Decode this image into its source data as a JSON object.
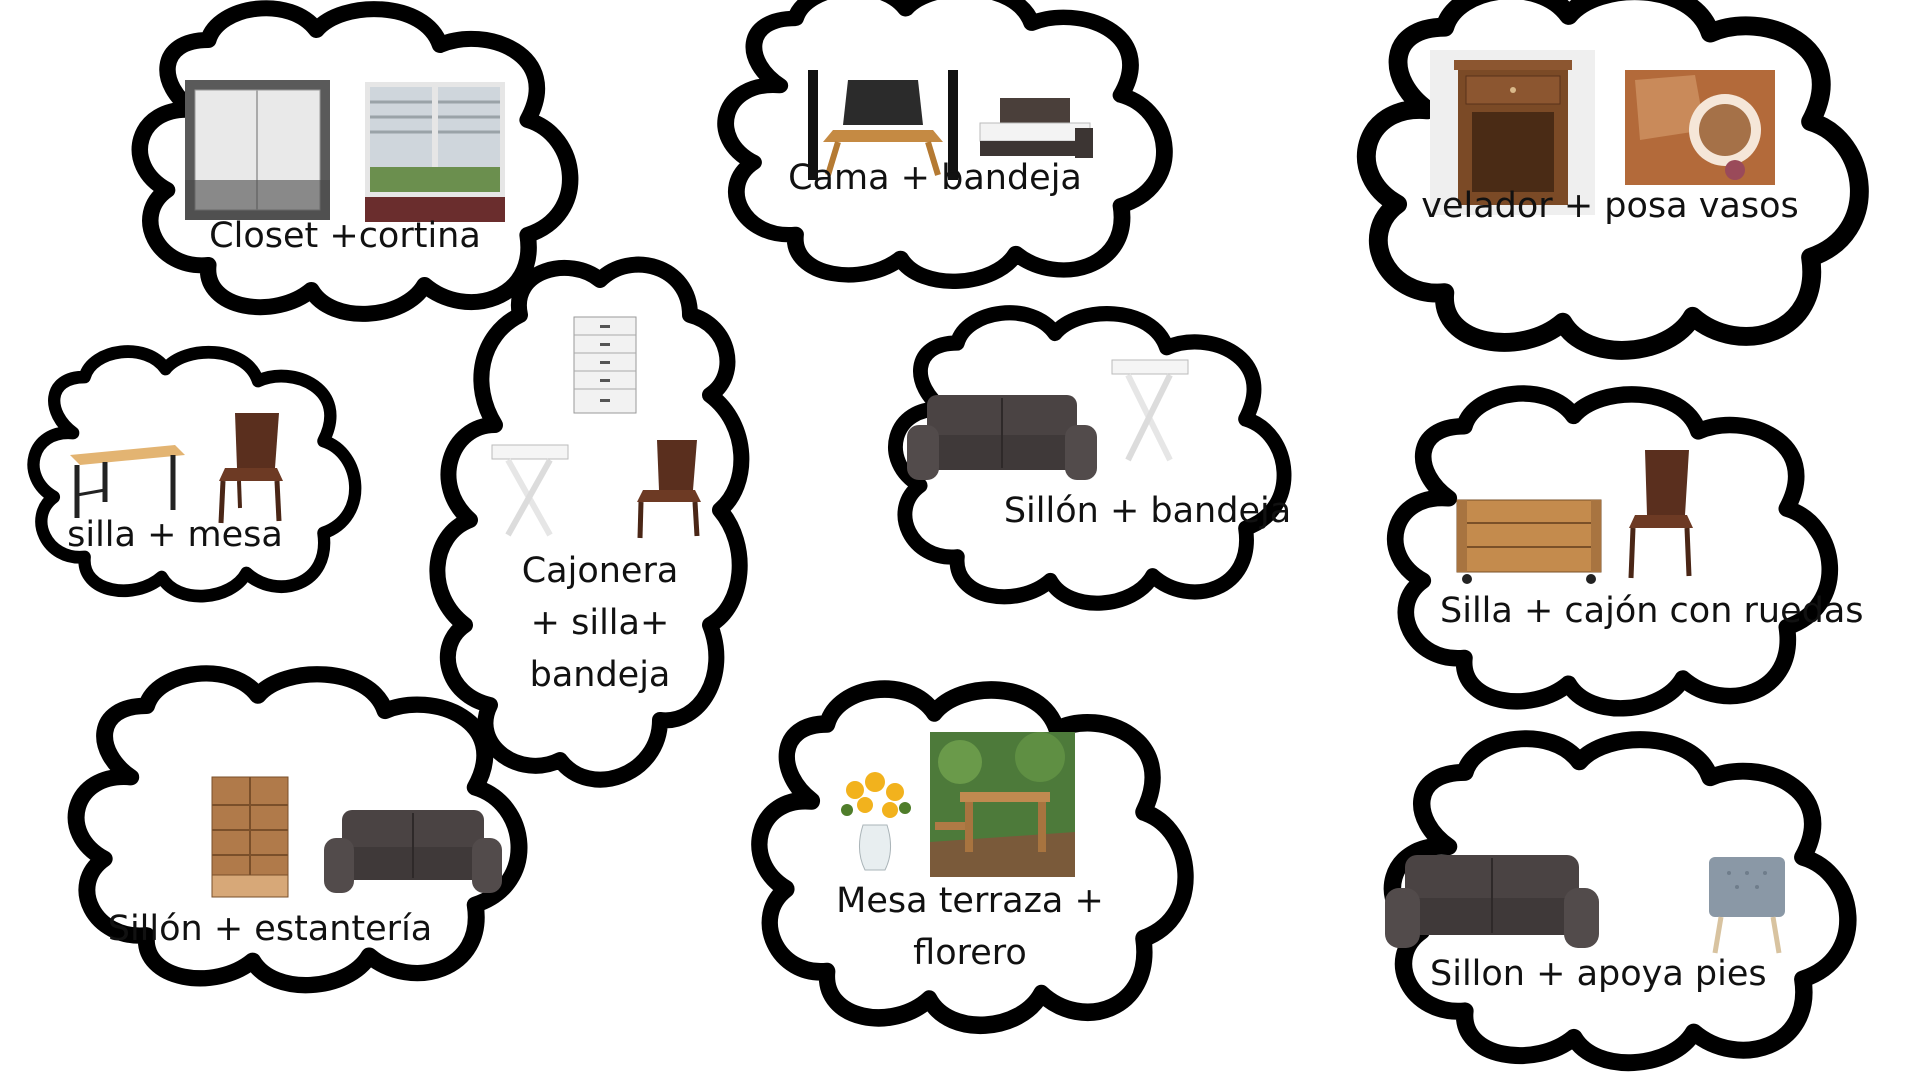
{
  "clouds": [
    {
      "label": "Closet +cortina",
      "items": [
        "closet-icon",
        "curtain-icon"
      ]
    },
    {
      "label": "Cama + bandeja",
      "items": [
        "laptop-tray-icon",
        "bed-icon"
      ]
    },
    {
      "label": "velador + posa vasos",
      "items": [
        "nightstand-icon",
        "coaster-icon"
      ]
    },
    {
      "label": "silla + mesa",
      "items": [
        "desk-icon",
        "chair-icon"
      ]
    },
    {
      "label_lines": [
        "Cajonera",
        "+ silla+",
        "bandeja"
      ],
      "items": [
        "drawer-cabinet-icon",
        "tray-table-icon",
        "chair-icon"
      ]
    },
    {
      "label": "Sillón + bandeja",
      "items": [
        "sofa-icon",
        "tray-table-icon"
      ]
    },
    {
      "label": "Silla + cajón con ruedas",
      "items": [
        "crate-on-wheels-icon",
        "chair-icon"
      ]
    },
    {
      "label": "Sillón + estantería",
      "items": [
        "bookshelf-icon",
        "sofa-icon"
      ]
    },
    {
      "label_lines": [
        "Mesa terraza +",
        "florero"
      ],
      "items": [
        "flower-vase-icon",
        "terrace-table-icon"
      ]
    },
    {
      "label": "Sillon + apoya pies",
      "items": [
        "sofa-icon",
        "footrest-icon"
      ]
    }
  ],
  "colors": {
    "outline": "#000000",
    "fill": "#ffffff",
    "text": "#111111",
    "wood": "#8a5a2b",
    "leather": "#4a4343",
    "white_furniture": "#f0f0f0"
  }
}
